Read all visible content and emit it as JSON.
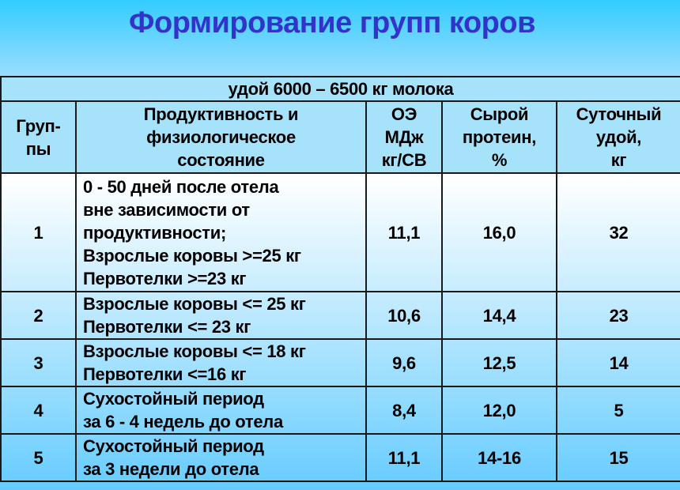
{
  "title": "Формирование групп коров",
  "table": {
    "caption": "удой 6000 – 6500 кг молока",
    "headers": [
      "Груп-\nпы",
      "Продуктивность и\nфизиологическое\nсостояние",
      "ОЭ\nМДж\nкг/СВ",
      "Сырой\nпротеин,\n%",
      "Суточный\nудой,\nкг"
    ],
    "rows": [
      {
        "group": "1",
        "state": "0 - 50 дней после отела\nвне зависимости от\nпродуктивности;\nВзрослые коровы >=25 кг\nПервотелки >=23 кг",
        "energy": "11,1",
        "protein": "16,0",
        "yield": "32"
      },
      {
        "group": "2",
        "state": "Взрослые коровы <= 25 кг\nПервотелки <= 23 кг",
        "energy": "10,6",
        "protein": "14,4",
        "yield": "23"
      },
      {
        "group": "3",
        "state": "Взрослые коровы <= 18 кг\nПервотелки <=16 кг",
        "energy": "9,6",
        "protein": "12,5",
        "yield": "14"
      },
      {
        "group": "4",
        "state": "Сухостойный период\nза 6 - 4 недель до отела",
        "energy": "8,4",
        "protein": "12,0",
        "yield": "5"
      },
      {
        "group": "5",
        "state": "Сухостойный период\nза 3 недели до отела",
        "energy": "11,1",
        "protein": "14-16",
        "yield": "15"
      }
    ]
  },
  "colors": {
    "title": "#3333cc",
    "background_top": "#33ccff",
    "background_bottom": "#66ccff"
  }
}
